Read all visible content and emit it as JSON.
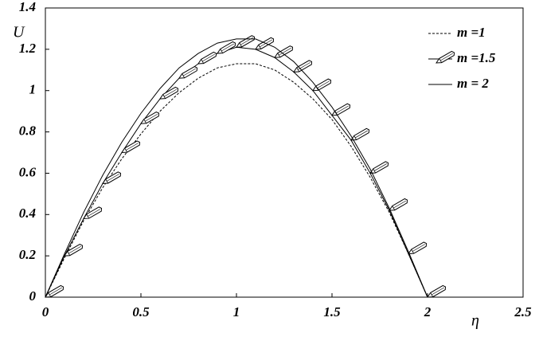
{
  "chart_data": {
    "type": "line",
    "x_label": "η",
    "y_label": "U",
    "x": [
      0,
      0.1,
      0.2,
      0.3,
      0.4,
      0.5,
      0.6,
      0.7,
      0.8,
      0.9,
      1.0,
      1.1,
      1.2,
      1.3,
      1.4,
      1.5,
      1.6,
      1.7,
      1.8,
      1.9,
      2.0
    ],
    "series": [
      {
        "name": "m =1",
        "color": "#000",
        "style": "dashed",
        "values": [
          0,
          0.19,
          0.37,
          0.53,
          0.67,
          0.79,
          0.9,
          0.99,
          1.06,
          1.11,
          1.13,
          1.13,
          1.1,
          1.04,
          0.96,
          0.86,
          0.73,
          0.58,
          0.41,
          0.21,
          0
        ]
      },
      {
        "name": "m =1.5",
        "color": "#000",
        "style": "pencil",
        "values": [
          0,
          0.2,
          0.38,
          0.55,
          0.7,
          0.84,
          0.96,
          1.06,
          1.13,
          1.18,
          1.21,
          1.2,
          1.16,
          1.09,
          1.0,
          0.88,
          0.76,
          0.6,
          0.42,
          0.21,
          0
        ]
      },
      {
        "name": "m = 2",
        "color": "#000",
        "style": "solid",
        "values": [
          0,
          0.21,
          0.41,
          0.59,
          0.75,
          0.89,
          1.01,
          1.11,
          1.18,
          1.23,
          1.25,
          1.25,
          1.21,
          1.14,
          1.04,
          0.92,
          0.78,
          0.62,
          0.43,
          0.22,
          0
        ]
      }
    ],
    "xlim": [
      0,
      2.5
    ],
    "xticks": [
      0,
      0.5,
      1,
      1.5,
      2,
      2.5
    ],
    "ylim": [
      0,
      1.4
    ],
    "yticks": [
      0,
      0.2,
      0.4,
      0.6,
      0.8,
      1,
      1.2,
      1.4
    ],
    "legend": "upper right"
  }
}
